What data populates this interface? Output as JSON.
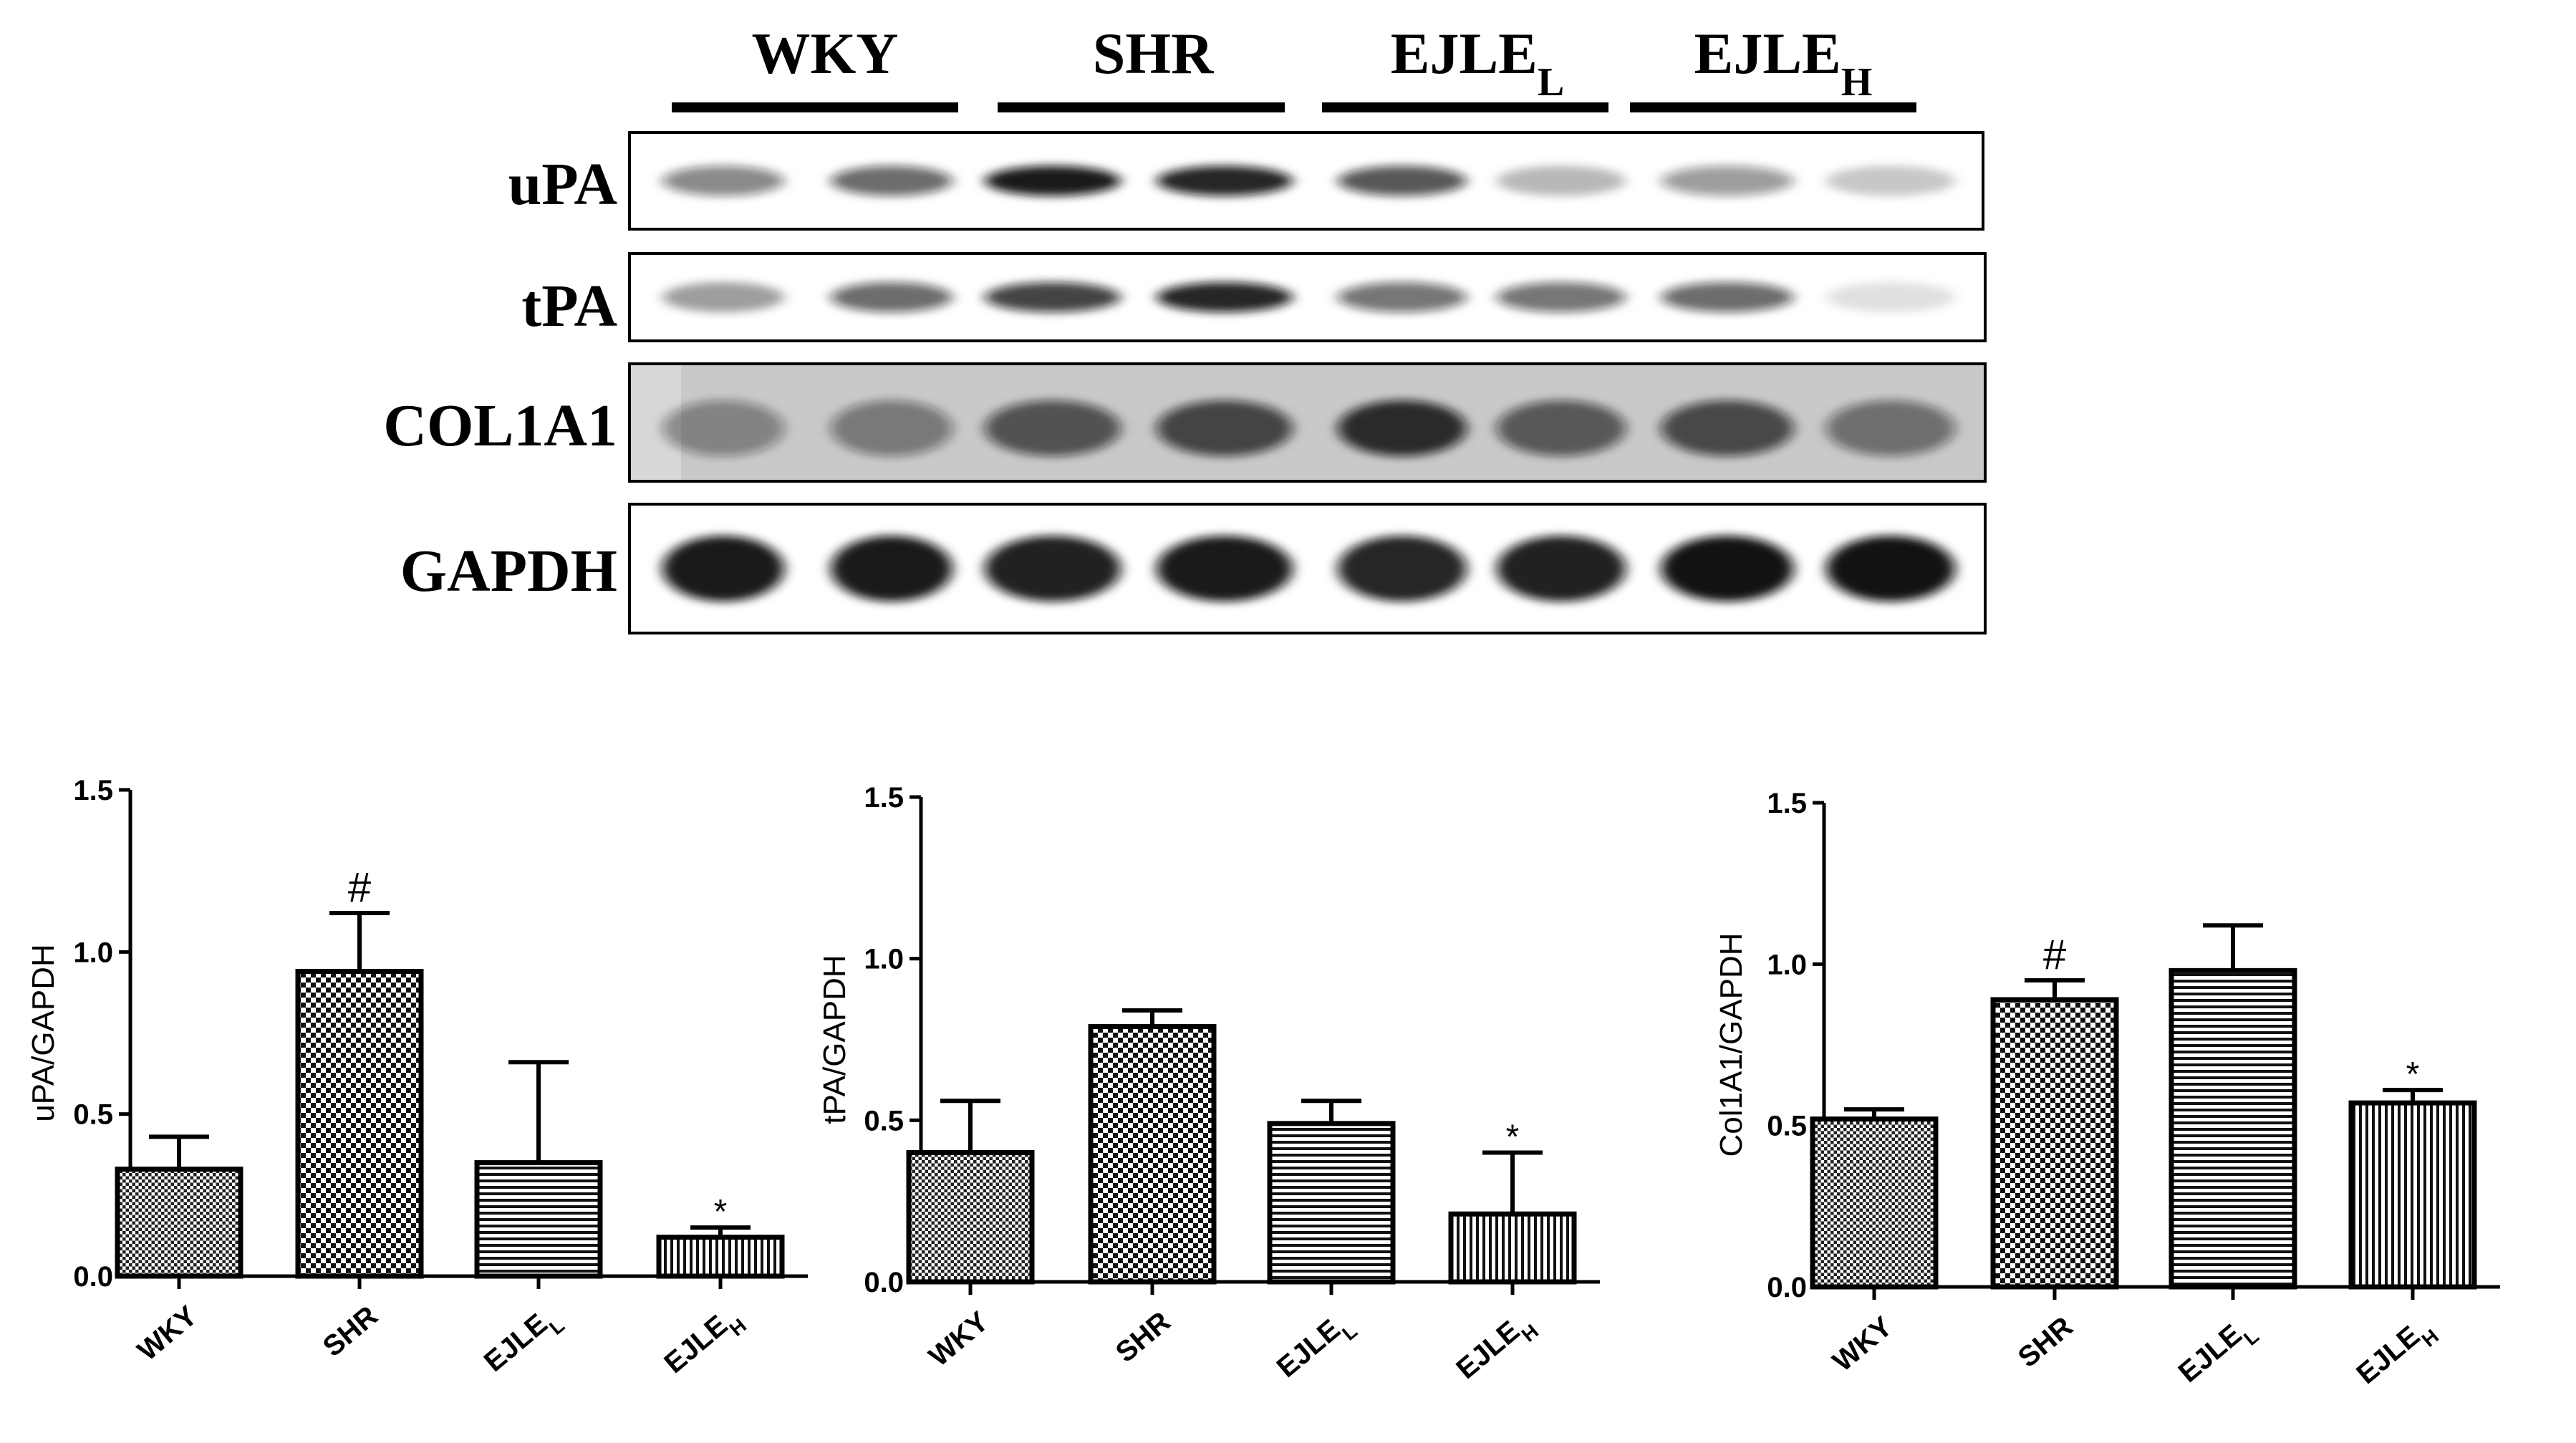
{
  "blot": {
    "groups": [
      {
        "name": "WKY",
        "sub": ""
      },
      {
        "name": "SHR",
        "sub": ""
      },
      {
        "name": "EJLE",
        "sub": "L"
      },
      {
        "name": "EJLE",
        "sub": "H"
      }
    ],
    "rows": [
      {
        "label": "uPA",
        "intensity": [
          0.5,
          0.62,
          0.95,
          0.9,
          0.7,
          0.28,
          0.42,
          0.22
        ]
      },
      {
        "label": "tPA",
        "intensity": [
          0.38,
          0.62,
          0.78,
          0.9,
          0.58,
          0.58,
          0.62,
          0.12
        ]
      },
      {
        "label": "COL1A1",
        "intensity": [
          0.4,
          0.45,
          0.65,
          0.72,
          0.85,
          0.62,
          0.7,
          0.5
        ]
      },
      {
        "label": "GAPDH",
        "intensity": [
          0.95,
          0.95,
          0.92,
          0.95,
          0.9,
          0.92,
          0.98,
          0.98
        ]
      }
    ],
    "colors": {
      "band": "#111111",
      "panel_bg": "#ffffff",
      "col1a1_bg": "#c9c9c9"
    }
  },
  "chart_data": [
    {
      "type": "bar",
      "categories": [
        {
          "main": "WKY",
          "sub": ""
        },
        {
          "main": "SHR",
          "sub": ""
        },
        {
          "main": "EJLE",
          "sub": "L"
        },
        {
          "main": "EJLE",
          "sub": "H"
        }
      ],
      "values": [
        0.33,
        0.94,
        0.35,
        0.12
      ],
      "errors": [
        0.1,
        0.18,
        0.31,
        0.03
      ],
      "annotations": [
        "",
        "#",
        "",
        "*"
      ],
      "patterns": [
        "dense-check",
        "check",
        "hlines",
        "vlines"
      ],
      "ylabel": "uPA/GAPDH",
      "ylim": [
        0,
        1.5
      ],
      "yticks": [
        "0.0",
        "0.5",
        "1.0",
        "1.5"
      ],
      "yticks_values": [
        0,
        0.5,
        1.0,
        1.5
      ],
      "grid": false
    },
    {
      "type": "bar",
      "categories": [
        {
          "main": "WKY",
          "sub": ""
        },
        {
          "main": "SHR",
          "sub": ""
        },
        {
          "main": "EJLE",
          "sub": "L"
        },
        {
          "main": "EJLE",
          "sub": "H"
        }
      ],
      "values": [
        0.4,
        0.79,
        0.49,
        0.21
      ],
      "errors": [
        0.16,
        0.05,
        0.07,
        0.19
      ],
      "annotations": [
        "",
        "",
        "",
        "*"
      ],
      "patterns": [
        "dense-check",
        "check",
        "hlines",
        "vlines"
      ],
      "ylabel": "tPA/GAPDH",
      "ylim": [
        0,
        1.5
      ],
      "yticks": [
        "0.0",
        "0.5",
        "1.0",
        "1.5"
      ],
      "yticks_values": [
        0,
        0.5,
        1.0,
        1.5
      ],
      "grid": false
    },
    {
      "type": "bar",
      "categories": [
        {
          "main": "WKY",
          "sub": ""
        },
        {
          "main": "SHR",
          "sub": ""
        },
        {
          "main": "EJLE",
          "sub": "L"
        },
        {
          "main": "EJLE",
          "sub": "H"
        }
      ],
      "values": [
        0.52,
        0.89,
        0.98,
        0.57
      ],
      "errors": [
        0.03,
        0.06,
        0.14,
        0.04
      ],
      "annotations": [
        "",
        "#",
        "",
        "*"
      ],
      "patterns": [
        "dense-check",
        "check",
        "hlines",
        "vlines"
      ],
      "ylabel": "Col1A1/GAPDH",
      "ylim": [
        0,
        1.5
      ],
      "yticks": [
        "0.0",
        "0.5",
        "1.0",
        "1.5"
      ],
      "yticks_values": [
        0,
        0.5,
        1.0,
        1.5
      ],
      "grid": false
    }
  ]
}
